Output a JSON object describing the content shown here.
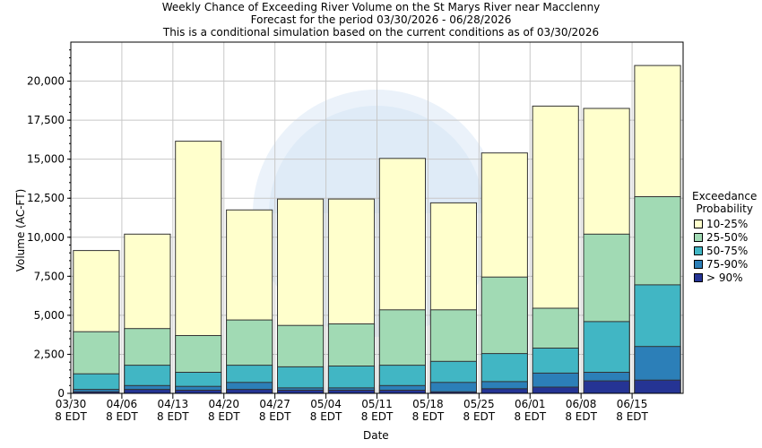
{
  "chart_data": {
    "type": "bar",
    "title": [
      "Weekly Chance of Exceeding River Volume on the St Marys River near Macclenny",
      "Forecast for the period 03/30/2026 - 06/28/2026",
      "This is a conditional simulation based on the current conditions as of 03/30/2026"
    ],
    "xlabel": "Date",
    "ylabel": "Volume (AC-FT)",
    "ylim": [
      0,
      22500
    ],
    "yticks": [
      0,
      2500,
      5000,
      7500,
      10000,
      12500,
      15000,
      17500,
      20000
    ],
    "ytick_labels": [
      "0",
      "2,500",
      "5,000",
      "7,500",
      "10,000",
      "12,500",
      "15,000",
      "17,500",
      "20,000"
    ],
    "categories": [
      {
        "date": "03/30",
        "tz": "8 EDT"
      },
      {
        "date": "04/06",
        "tz": "8 EDT"
      },
      {
        "date": "04/13",
        "tz": "8 EDT"
      },
      {
        "date": "04/20",
        "tz": "8 EDT"
      },
      {
        "date": "04/27",
        "tz": "8 EDT"
      },
      {
        "date": "05/04",
        "tz": "8 EDT"
      },
      {
        "date": "05/11",
        "tz": "8 EDT"
      },
      {
        "date": "05/18",
        "tz": "8 EDT"
      },
      {
        "date": "05/25",
        "tz": "8 EDT"
      },
      {
        "date": "06/01",
        "tz": "8 EDT"
      },
      {
        "date": "06/08",
        "tz": "8 EDT"
      },
      {
        "date": "06/15",
        "tz": "8 EDT"
      }
    ],
    "legend_title": [
      "Exceedance",
      "Probability"
    ],
    "legend_position": "right",
    "grid": true,
    "series": [
      {
        "name": "> 90%",
        "color": "#253494",
        "values": [
          100,
          250,
          200,
          250,
          200,
          200,
          200,
          100,
          300,
          400,
          800,
          850
        ]
      },
      {
        "name": "75-90%",
        "color": "#2c7fb8",
        "values": [
          250,
          500,
          450,
          700,
          350,
          350,
          500,
          700,
          750,
          1300,
          1350,
          3000
        ]
      },
      {
        "name": "50-75%",
        "color": "#41b6c4",
        "values": [
          1250,
          1800,
          1350,
          1800,
          1700,
          1750,
          1800,
          2050,
          2550,
          2900,
          4600,
          6950
        ]
      },
      {
        "name": "25-50%",
        "color": "#a1dab4",
        "values": [
          3950,
          4150,
          3700,
          4700,
          4350,
          4450,
          5350,
          5350,
          7450,
          5450,
          10200,
          12600
        ]
      },
      {
        "name": "10-25%",
        "color": "#ffffcc",
        "values": [
          9150,
          10200,
          16150,
          11750,
          12450,
          12450,
          15050,
          12200,
          15400,
          18400,
          18250,
          21000
        ]
      }
    ]
  }
}
